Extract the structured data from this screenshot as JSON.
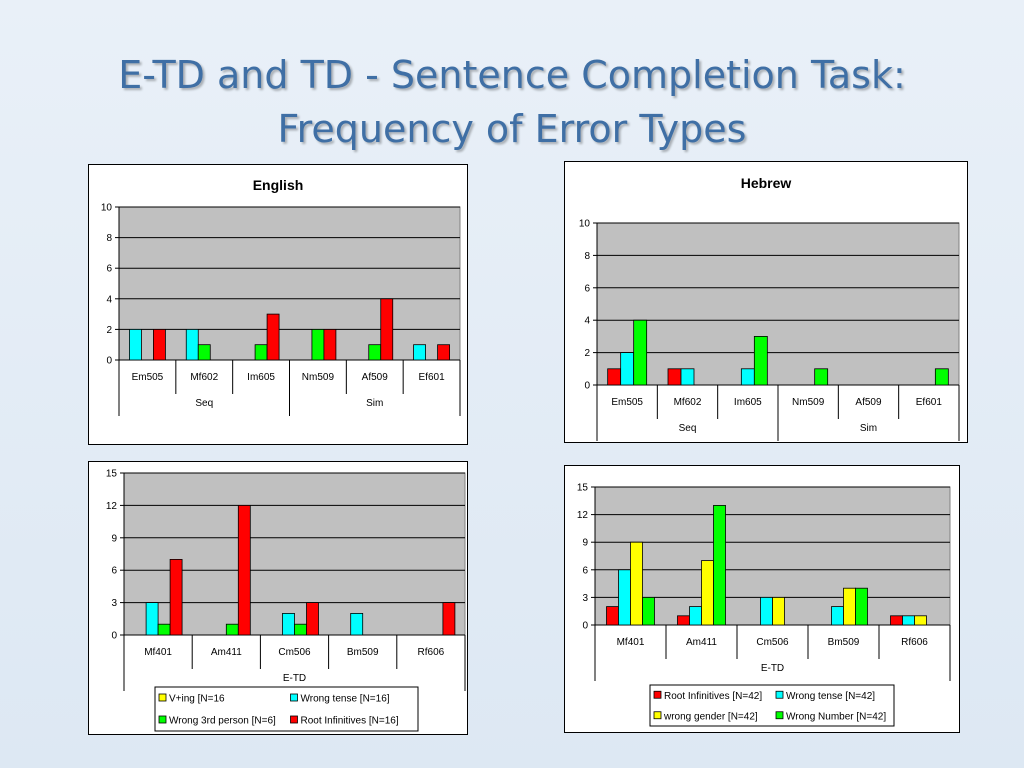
{
  "slide": {
    "title_line1": "E-TD and TD - Sentence Completion Task:",
    "title_line2": "Frequency of Error Types"
  },
  "colors": {
    "red": "#ff0000",
    "cyan": "#00ffff",
    "green": "#00ff00",
    "yellow": "#ffff00",
    "plot_bg": "#c0c0c0"
  },
  "chart_data": [
    {
      "id": "english",
      "type": "bar",
      "title": "English",
      "categories": [
        "Em505",
        "Mf602",
        "Im605",
        "Nm509",
        "Af509",
        "Ef601"
      ],
      "groups": [
        {
          "label": "Seq",
          "span": 3
        },
        {
          "label": "Sim",
          "span": 3
        }
      ],
      "ylim": [
        0,
        10
      ],
      "yticks": [
        0,
        2,
        4,
        6,
        8,
        10
      ],
      "grid": true,
      "legend": "none",
      "series": [
        {
          "color": "cyan",
          "values": [
            2,
            2,
            0,
            0,
            0,
            1
          ]
        },
        {
          "color": "green",
          "values": [
            0,
            1,
            1,
            2,
            1,
            0
          ]
        },
        {
          "color": "red",
          "values": [
            2,
            0,
            3,
            2,
            4,
            1
          ]
        }
      ]
    },
    {
      "id": "hebrew",
      "type": "bar",
      "title": "Hebrew",
      "categories": [
        "Em505",
        "Mf602",
        "Im605",
        "Nm509",
        "Af509",
        "Ef601"
      ],
      "groups": [
        {
          "label": "Seq",
          "span": 3
        },
        {
          "label": "Sim",
          "span": 3
        }
      ],
      "ylim": [
        0,
        10
      ],
      "yticks": [
        0,
        2,
        4,
        6,
        8,
        10
      ],
      "grid": true,
      "legend": "none",
      "series": [
        {
          "color": "red",
          "values": [
            1,
            1,
            0,
            0,
            0,
            0
          ]
        },
        {
          "color": "cyan",
          "values": [
            2,
            1,
            1,
            0,
            0,
            0
          ]
        },
        {
          "color": "green",
          "values": [
            4,
            0,
            3,
            1,
            0,
            1
          ]
        }
      ]
    },
    {
      "id": "etd-english",
      "type": "bar",
      "title": "",
      "categories": [
        "Mf401",
        "Am411",
        "Cm506",
        "Bm509",
        "Rf606"
      ],
      "groups": [
        {
          "label": "E-TD",
          "span": 5
        }
      ],
      "ylim": [
        0,
        15
      ],
      "yticks": [
        0,
        3,
        6,
        9,
        12,
        15
      ],
      "grid": true,
      "legend": "bottom",
      "series": [
        {
          "name": "V+ing [N=16",
          "color": "yellow",
          "values": [
            0,
            0,
            0,
            0,
            0
          ]
        },
        {
          "name": "Wrong tense [N=16]",
          "color": "cyan",
          "values": [
            3,
            0,
            2,
            2,
            0
          ]
        },
        {
          "name": "Wrong 3rd person [N=6]",
          "color": "green",
          "values": [
            1,
            1,
            1,
            0,
            0
          ]
        },
        {
          "name": "Root Infinitives [N=16]",
          "color": "red",
          "values": [
            7,
            12,
            3,
            0,
            3
          ]
        }
      ]
    },
    {
      "id": "etd-hebrew",
      "type": "bar",
      "title": "",
      "categories": [
        "Mf401",
        "Am411",
        "Cm506",
        "Bm509",
        "Rf606"
      ],
      "groups": [
        {
          "label": "E-TD",
          "span": 5
        }
      ],
      "ylim": [
        0,
        15
      ],
      "yticks": [
        0,
        3,
        6,
        9,
        12,
        15
      ],
      "grid": true,
      "legend": "bottom",
      "series": [
        {
          "name": "Root Infinitives [N=42]",
          "color": "red",
          "values": [
            2,
            1,
            0,
            0,
            1
          ]
        },
        {
          "name": "Wrong tense [N=42]",
          "color": "cyan",
          "values": [
            6,
            2,
            3,
            2,
            1
          ]
        },
        {
          "name": "wrong gender [N=42]",
          "color": "yellow",
          "values": [
            9,
            7,
            3,
            4,
            1
          ]
        },
        {
          "name": "Wrong Number [N=42]",
          "color": "green",
          "values": [
            3,
            13,
            0,
            4,
            0
          ]
        }
      ]
    }
  ]
}
